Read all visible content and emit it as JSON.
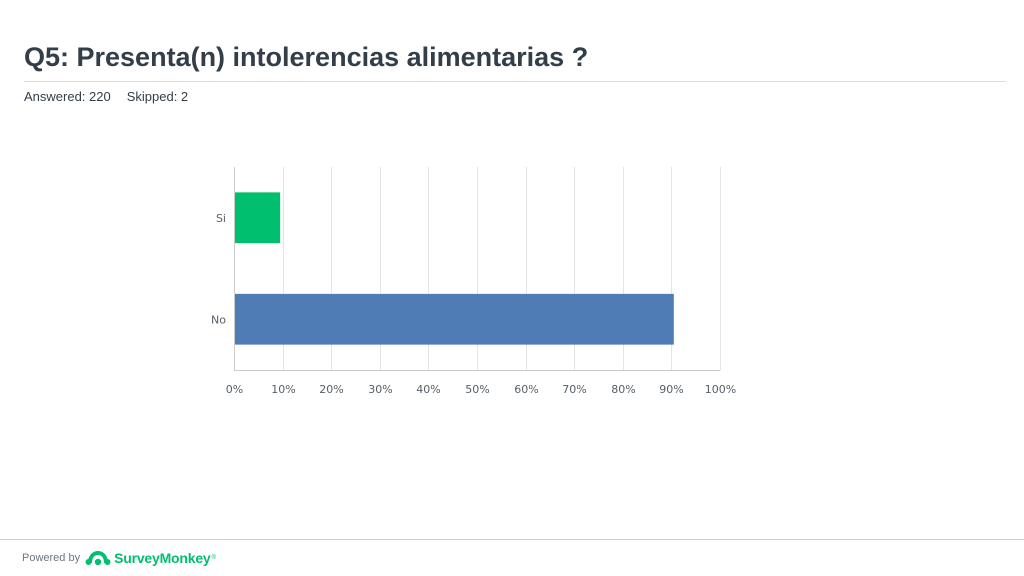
{
  "header": {
    "title": "Q5: Presenta(n) intolerencias alimentarias ?",
    "answered": "Answered: 220",
    "skipped": "Skipped: 2"
  },
  "footer": {
    "powered_by": "Powered by",
    "brand": "SurveyMonkey",
    "trademark": "®",
    "logo_icon": "surveymonkey-logo-icon",
    "brand_color": "#00bf6f"
  },
  "chart_data": {
    "type": "bar",
    "orientation": "horizontal",
    "categories": [
      "Si",
      "No"
    ],
    "values": [
      9.5,
      90.5
    ],
    "colors": [
      "#00bf6f",
      "#507cb6"
    ],
    "xlim": [
      0,
      100
    ],
    "x_ticks": [
      "0%",
      "10%",
      "20%",
      "30%",
      "40%",
      "50%",
      "60%",
      "70%",
      "80%",
      "90%",
      "100%"
    ],
    "grid": true
  }
}
